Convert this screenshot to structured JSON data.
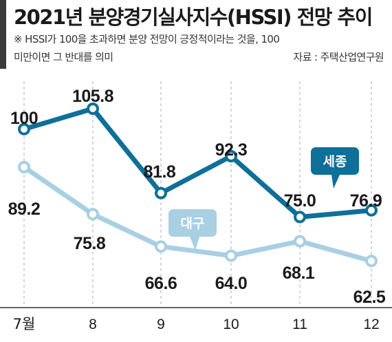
{
  "header": {
    "title": "2021년 분양경기실사지수(HSSI) 전망 추이",
    "note_line1": "※ HSSI가 100을 초과하면 분양 전망이 긍정적이라는 것을, 100",
    "note_line2": "미만이면 그 반대를 의미",
    "source": "자료 : 주택산업연구원"
  },
  "colors": {
    "sejong": "#0e6f98",
    "daegu": "#a9cfe3",
    "gridline": "#c8c8c8",
    "header_bar": "#3a3a3a"
  },
  "chart_data": {
    "type": "line",
    "title": "2021년 분양경기실사지수(HSSI) 전망 추이",
    "categories": [
      "7월",
      "8",
      "9",
      "10",
      "11",
      "12"
    ],
    "series": [
      {
        "name": "세종",
        "values": [
          100,
          105.8,
          81.8,
          92.3,
          75.0,
          76.9
        ],
        "labels": [
          "100",
          "105.8",
          "81.8",
          "92.3",
          "75.0",
          "76.9"
        ]
      },
      {
        "name": "대구",
        "values": [
          89.2,
          75.8,
          66.6,
          64.0,
          68.1,
          62.5
        ],
        "labels": [
          "89.2",
          "75.8",
          "66.6",
          "64.0",
          "68.1",
          "62.5"
        ]
      }
    ],
    "ylim": [
      60,
      106
    ],
    "grid": "vertical dashed"
  }
}
